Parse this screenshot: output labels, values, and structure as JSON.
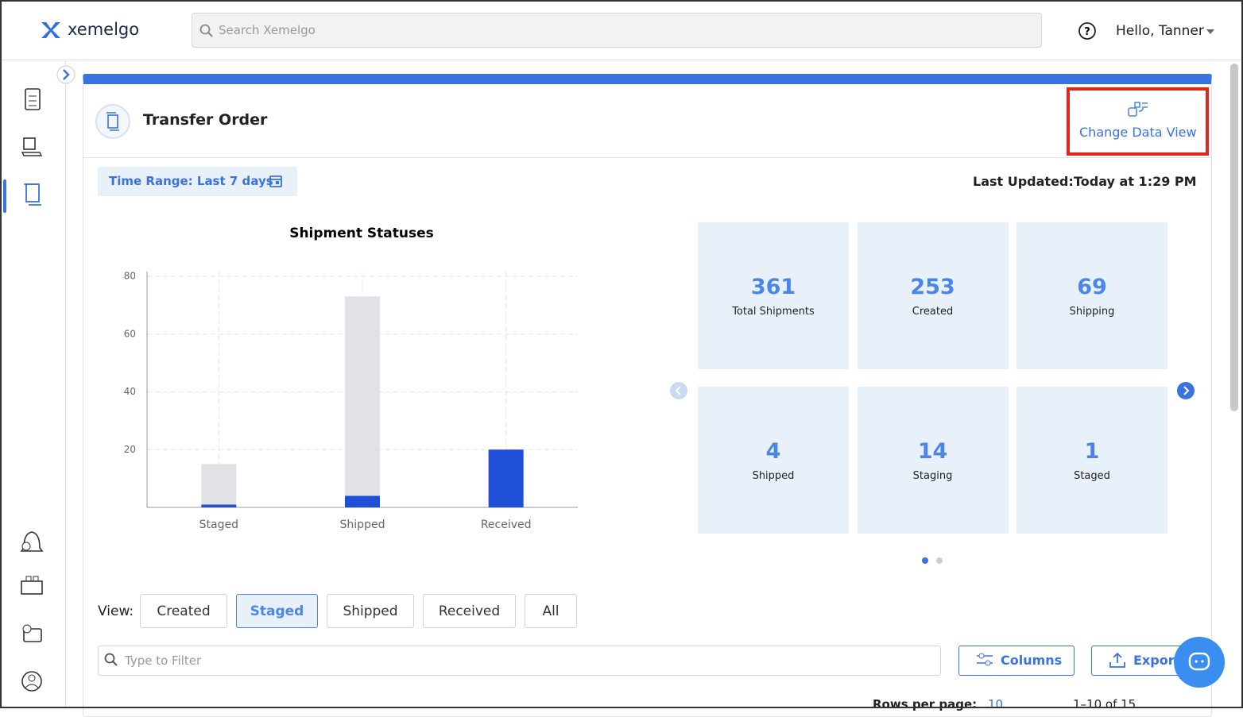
{
  "header": {
    "logo": "xemelgo",
    "search_placeholder": "Search Xemelgo",
    "greeting": "Hello, Tanner"
  },
  "page": {
    "title": "Transfer Order",
    "change_view": "Change Data View",
    "time_range": "Time Range: Last 7 days",
    "last_updated_label": "Last Updated:",
    "last_updated_value": "Today at 1:29 PM"
  },
  "chart_data": {
    "type": "bar",
    "stacked": true,
    "title": "Shipment Statuses",
    "categories": [
      "Staged",
      "Shipped",
      "Received"
    ],
    "series": [
      {
        "color": "#1f4fd6",
        "values": [
          1,
          4,
          20
        ]
      },
      {
        "color": "#e1e2e6",
        "values": [
          14,
          69,
          0
        ]
      }
    ],
    "ylim": [
      0,
      80
    ],
    "yticks": [
      20,
      40,
      60,
      80
    ],
    "grid": true
  },
  "stats": [
    {
      "value": 361,
      "label": "Total Shipments"
    },
    {
      "value": 253,
      "label": "Created"
    },
    {
      "value": 69,
      "label": "Shipping"
    },
    {
      "value": 4,
      "label": "Shipped"
    },
    {
      "value": 14,
      "label": "Staging"
    },
    {
      "value": 1,
      "label": "Staged"
    }
  ],
  "view": {
    "label": "View:",
    "buttons": [
      "Created",
      "Staged",
      "Shipped",
      "Received",
      "All"
    ],
    "active": 1
  },
  "table_controls": {
    "filter_placeholder": "Type to Filter",
    "columns_button": "Columns",
    "export_button": "Export",
    "rows_per_page_label": "Rows per page:",
    "rows_per_page": 10,
    "range": "1–10 of 15"
  }
}
